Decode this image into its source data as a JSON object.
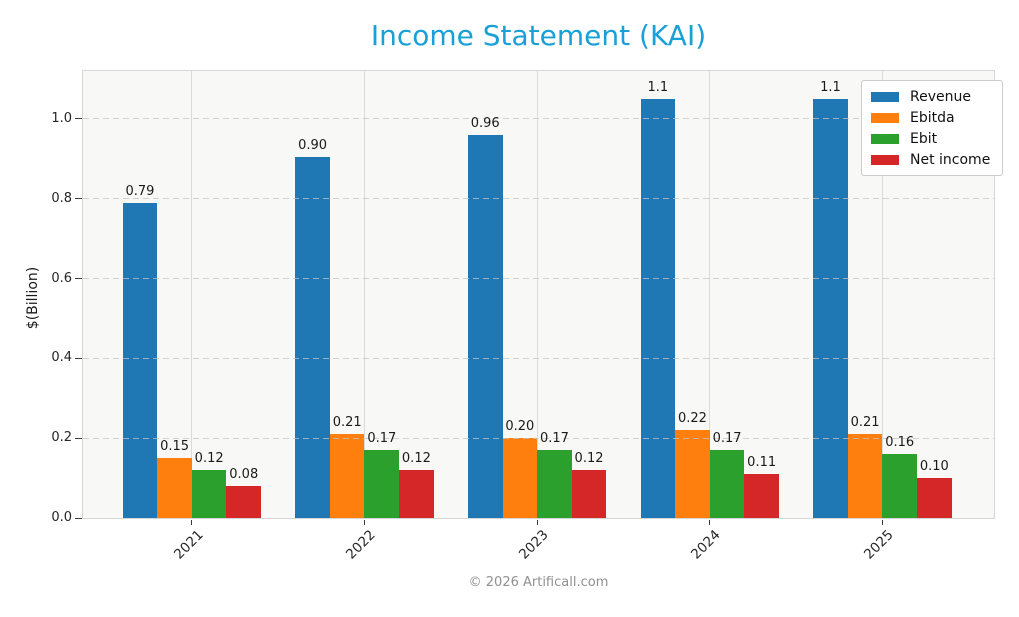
{
  "chart_data": {
    "type": "bar",
    "title": "Income Statement (KAI)",
    "title_color": "#19a0d7",
    "xlabel": "",
    "ylabel": "$(Billion)",
    "categories": [
      "2021",
      "2022",
      "2023",
      "2024",
      "2025"
    ],
    "series": [
      {
        "name": "Revenue",
        "color": "#1f77b4",
        "values": [
          0.79,
          0.905,
          0.96,
          1.05,
          1.05
        ],
        "labels": [
          "0.79",
          "0.90",
          "0.96",
          "1.1",
          "1.1"
        ]
      },
      {
        "name": "Ebitda",
        "color": "#ff7f0e",
        "values": [
          0.15,
          0.21,
          0.2,
          0.22,
          0.21
        ],
        "labels": [
          "0.15",
          "0.21",
          "0.20",
          "0.22",
          "0.21"
        ]
      },
      {
        "name": "Ebit",
        "color": "#2ca02c",
        "values": [
          0.12,
          0.17,
          0.17,
          0.17,
          0.16
        ],
        "labels": [
          "0.12",
          "0.17",
          "0.17",
          "0.17",
          "0.16"
        ]
      },
      {
        "name": "Net income",
        "color": "#d62728",
        "values": [
          0.08,
          0.12,
          0.12,
          0.11,
          0.1
        ],
        "labels": [
          "0.08",
          "0.12",
          "0.12",
          "0.11",
          "0.10"
        ]
      }
    ],
    "yticks": [
      0.0,
      0.2,
      0.4,
      0.6,
      0.8,
      1.0
    ],
    "ytick_labels": [
      "0.0",
      "0.2",
      "0.4",
      "0.6",
      "0.8",
      "1.0"
    ],
    "ylim": [
      0,
      1.12
    ],
    "grid": true,
    "legend_position": "upper right"
  },
  "footer": {
    "credit": "© 2026 Artificall.com"
  }
}
